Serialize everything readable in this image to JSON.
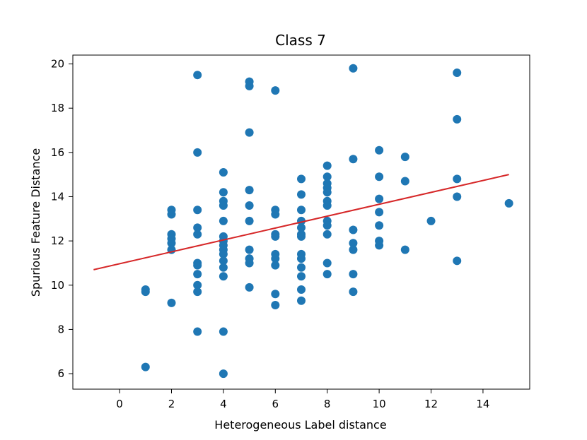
{
  "chart_data": {
    "type": "scatter",
    "title": "Class 7",
    "xlabel": "Heterogeneous Label distance",
    "ylabel": "Spurious Feature Distance",
    "xlim": [
      -1.8,
      15.8
    ],
    "ylim": [
      5.3,
      20.4
    ],
    "xticks": [
      0,
      2,
      4,
      6,
      8,
      10,
      12,
      14
    ],
    "yticks": [
      6,
      8,
      10,
      12,
      14,
      16,
      18,
      20
    ],
    "grid": false,
    "point_color": "#1f77b4",
    "line_color": "#d62728",
    "points": [
      {
        "x": 1,
        "y": 9.8
      },
      {
        "x": 1,
        "y": 9.7
      },
      {
        "x": 1,
        "y": 6.3
      },
      {
        "x": 2,
        "y": 13.4
      },
      {
        "x": 2,
        "y": 13.2
      },
      {
        "x": 2,
        "y": 12.3
      },
      {
        "x": 2,
        "y": 12.1
      },
      {
        "x": 2,
        "y": 11.9
      },
      {
        "x": 2,
        "y": 11.6
      },
      {
        "x": 2,
        "y": 9.2
      },
      {
        "x": 3,
        "y": 19.5
      },
      {
        "x": 3,
        "y": 16.0
      },
      {
        "x": 3,
        "y": 13.4
      },
      {
        "x": 3,
        "y": 12.6
      },
      {
        "x": 3,
        "y": 12.3
      },
      {
        "x": 3,
        "y": 11.0
      },
      {
        "x": 3,
        "y": 10.9
      },
      {
        "x": 3,
        "y": 10.5
      },
      {
        "x": 3,
        "y": 10.0
      },
      {
        "x": 3,
        "y": 9.7
      },
      {
        "x": 3,
        "y": 7.9
      },
      {
        "x": 4,
        "y": 15.1
      },
      {
        "x": 4,
        "y": 14.2
      },
      {
        "x": 4,
        "y": 13.8
      },
      {
        "x": 4,
        "y": 13.6
      },
      {
        "x": 4,
        "y": 12.9
      },
      {
        "x": 4,
        "y": 12.2
      },
      {
        "x": 4,
        "y": 12.0
      },
      {
        "x": 4,
        "y": 11.8
      },
      {
        "x": 4,
        "y": 11.6
      },
      {
        "x": 4,
        "y": 11.4
      },
      {
        "x": 4,
        "y": 11.1
      },
      {
        "x": 4,
        "y": 10.8
      },
      {
        "x": 4,
        "y": 10.4
      },
      {
        "x": 4,
        "y": 7.9
      },
      {
        "x": 4,
        "y": 6.0
      },
      {
        "x": 5,
        "y": 19.2
      },
      {
        "x": 5,
        "y": 19.0
      },
      {
        "x": 5,
        "y": 16.9
      },
      {
        "x": 5,
        "y": 14.3
      },
      {
        "x": 5,
        "y": 13.6
      },
      {
        "x": 5,
        "y": 12.9
      },
      {
        "x": 5,
        "y": 11.6
      },
      {
        "x": 5,
        "y": 11.2
      },
      {
        "x": 5,
        "y": 11.0
      },
      {
        "x": 5,
        "y": 9.9
      },
      {
        "x": 6,
        "y": 18.8
      },
      {
        "x": 6,
        "y": 13.4
      },
      {
        "x": 6,
        "y": 13.2
      },
      {
        "x": 6,
        "y": 12.3
      },
      {
        "x": 6,
        "y": 12.2
      },
      {
        "x": 6,
        "y": 11.4
      },
      {
        "x": 6,
        "y": 11.2
      },
      {
        "x": 6,
        "y": 10.9
      },
      {
        "x": 6,
        "y": 9.6
      },
      {
        "x": 6,
        "y": 9.1
      },
      {
        "x": 7,
        "y": 14.8
      },
      {
        "x": 7,
        "y": 14.1
      },
      {
        "x": 7,
        "y": 13.4
      },
      {
        "x": 7,
        "y": 12.9
      },
      {
        "x": 7,
        "y": 12.6
      },
      {
        "x": 7,
        "y": 12.3
      },
      {
        "x": 7,
        "y": 12.2
      },
      {
        "x": 7,
        "y": 11.4
      },
      {
        "x": 7,
        "y": 11.2
      },
      {
        "x": 7,
        "y": 10.8
      },
      {
        "x": 7,
        "y": 10.4
      },
      {
        "x": 7,
        "y": 9.8
      },
      {
        "x": 7,
        "y": 9.3
      },
      {
        "x": 8,
        "y": 15.4
      },
      {
        "x": 8,
        "y": 14.9
      },
      {
        "x": 8,
        "y": 14.6
      },
      {
        "x": 8,
        "y": 14.4
      },
      {
        "x": 8,
        "y": 14.2
      },
      {
        "x": 8,
        "y": 13.8
      },
      {
        "x": 8,
        "y": 13.6
      },
      {
        "x": 8,
        "y": 12.9
      },
      {
        "x": 8,
        "y": 12.7
      },
      {
        "x": 8,
        "y": 12.3
      },
      {
        "x": 8,
        "y": 11.0
      },
      {
        "x": 8,
        "y": 10.5
      },
      {
        "x": 9,
        "y": 19.8
      },
      {
        "x": 9,
        "y": 15.7
      },
      {
        "x": 9,
        "y": 12.5
      },
      {
        "x": 9,
        "y": 11.9
      },
      {
        "x": 9,
        "y": 11.6
      },
      {
        "x": 9,
        "y": 10.5
      },
      {
        "x": 9,
        "y": 9.7
      },
      {
        "x": 10,
        "y": 16.1
      },
      {
        "x": 10,
        "y": 14.9
      },
      {
        "x": 10,
        "y": 13.9
      },
      {
        "x": 10,
        "y": 13.3
      },
      {
        "x": 10,
        "y": 12.7
      },
      {
        "x": 10,
        "y": 12.0
      },
      {
        "x": 10,
        "y": 11.8
      },
      {
        "x": 11,
        "y": 15.8
      },
      {
        "x": 11,
        "y": 14.7
      },
      {
        "x": 11,
        "y": 11.6
      },
      {
        "x": 12,
        "y": 12.9
      },
      {
        "x": 13,
        "y": 19.6
      },
      {
        "x": 13,
        "y": 17.5
      },
      {
        "x": 13,
        "y": 14.8
      },
      {
        "x": 13,
        "y": 14.0
      },
      {
        "x": 13,
        "y": 11.1
      },
      {
        "x": 15,
        "y": 13.7
      }
    ],
    "fit_line": {
      "x": [
        -1,
        15
      ],
      "y": [
        10.7,
        15.0
      ]
    }
  }
}
